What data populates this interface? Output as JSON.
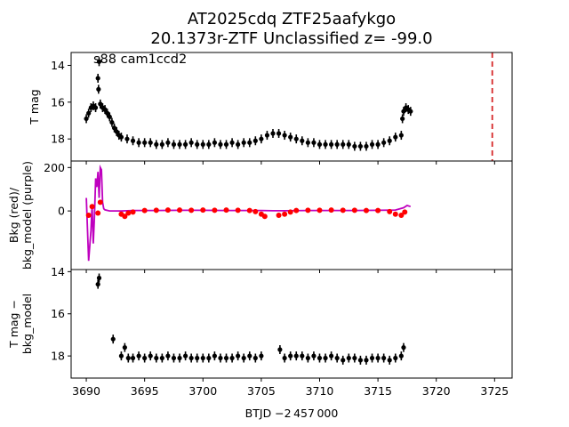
{
  "chart_data": {
    "title_line1": "AT2025cdq  ZTF25aafykgo",
    "title_line2": "20.1373r-ZTF Unclassified z= -99.0",
    "xlabel": "BTJD −2 457 000",
    "x_ticks": [
      3690,
      3695,
      3700,
      3705,
      3710,
      3715,
      3720,
      3725
    ],
    "xlim": [
      3688.7,
      3726.5
    ],
    "panels": [
      {
        "id": "top",
        "type": "scatter",
        "ylabel": "T mag",
        "ylim": [
          19.2,
          13.3
        ],
        "y_ticks": [
          14,
          16,
          18
        ],
        "annotation": "s88 cam1ccd2",
        "vline": {
          "x": 3724.8,
          "color": "#d62728",
          "style": "dashed"
        },
        "series": [
          {
            "color": "#000000",
            "points": [
              [
                3690.0,
                16.9
              ],
              [
                3690.2,
                16.6
              ],
              [
                3690.4,
                16.3
              ],
              [
                3690.6,
                16.2
              ],
              [
                3690.8,
                16.3
              ],
              [
                3691.0,
                14.7
              ],
              [
                3691.05,
                15.3
              ],
              [
                3691.1,
                13.8
              ],
              [
                3691.2,
                16.1
              ],
              [
                3691.4,
                16.3
              ],
              [
                3691.6,
                16.4
              ],
              [
                3691.8,
                16.6
              ],
              [
                3692.0,
                16.8
              ],
              [
                3692.2,
                17.1
              ],
              [
                3692.4,
                17.4
              ],
              [
                3692.6,
                17.6
              ],
              [
                3692.8,
                17.8
              ],
              [
                3693.0,
                17.9
              ],
              [
                3693.5,
                18.0
              ],
              [
                3694.0,
                18.1
              ],
              [
                3694.5,
                18.2
              ],
              [
                3695.0,
                18.2
              ],
              [
                3695.5,
                18.2
              ],
              [
                3696.0,
                18.3
              ],
              [
                3696.5,
                18.3
              ],
              [
                3697.0,
                18.2
              ],
              [
                3697.5,
                18.3
              ],
              [
                3698.0,
                18.3
              ],
              [
                3698.5,
                18.3
              ],
              [
                3699.0,
                18.2
              ],
              [
                3699.5,
                18.3
              ],
              [
                3700.0,
                18.3
              ],
              [
                3700.5,
                18.3
              ],
              [
                3701.0,
                18.2
              ],
              [
                3701.5,
                18.3
              ],
              [
                3702.0,
                18.3
              ],
              [
                3702.5,
                18.2
              ],
              [
                3703.0,
                18.3
              ],
              [
                3703.5,
                18.2
              ],
              [
                3704.0,
                18.2
              ],
              [
                3704.5,
                18.1
              ],
              [
                3705.0,
                18.0
              ],
              [
                3705.5,
                17.8
              ],
              [
                3706.0,
                17.7
              ],
              [
                3706.5,
                17.7
              ],
              [
                3707.0,
                17.8
              ],
              [
                3707.5,
                17.9
              ],
              [
                3708.0,
                18.0
              ],
              [
                3708.5,
                18.1
              ],
              [
                3709.0,
                18.2
              ],
              [
                3709.5,
                18.2
              ],
              [
                3710.0,
                18.3
              ],
              [
                3710.5,
                18.3
              ],
              [
                3711.0,
                18.3
              ],
              [
                3711.5,
                18.3
              ],
              [
                3712.0,
                18.3
              ],
              [
                3712.5,
                18.3
              ],
              [
                3713.0,
                18.4
              ],
              [
                3713.5,
                18.4
              ],
              [
                3714.0,
                18.4
              ],
              [
                3714.5,
                18.3
              ],
              [
                3715.0,
                18.3
              ],
              [
                3715.5,
                18.2
              ],
              [
                3716.0,
                18.1
              ],
              [
                3716.5,
                17.9
              ],
              [
                3717.0,
                17.8
              ],
              [
                3717.1,
                16.9
              ],
              [
                3717.2,
                16.5
              ],
              [
                3717.4,
                16.3
              ],
              [
                3717.6,
                16.4
              ],
              [
                3717.8,
                16.5
              ]
            ]
          }
        ]
      },
      {
        "id": "middle",
        "type": "line",
        "ylabel_line1": "Bkg (red)/",
        "ylabel_line2": "bkg_model (purple)",
        "ylim": [
          -270,
          230
        ],
        "y_ticks": [
          0,
          200
        ],
        "series": [
          {
            "name": "bkg_model",
            "color": "#bf00bf",
            "points": [
              [
                3690.0,
                60
              ],
              [
                3690.2,
                -230
              ],
              [
                3690.4,
                -90
              ],
              [
                3690.5,
                30
              ],
              [
                3690.6,
                -150
              ],
              [
                3690.7,
                -30
              ],
              [
                3690.8,
                150
              ],
              [
                3690.9,
                110
              ],
              [
                3691.0,
                180
              ],
              [
                3691.1,
                60
              ],
              [
                3691.2,
                200
              ],
              [
                3691.3,
                190
              ],
              [
                3691.4,
                40
              ],
              [
                3691.5,
                10
              ],
              [
                3691.6,
                5
              ],
              [
                3692.0,
                0
              ],
              [
                3693.0,
                0
              ],
              [
                3694.0,
                2
              ],
              [
                3696.0,
                2
              ],
              [
                3698.0,
                3
              ],
              [
                3700.0,
                3
              ],
              [
                3702.0,
                2
              ],
              [
                3704.0,
                2
              ],
              [
                3705.0,
                2
              ],
              [
                3706.0,
                1
              ],
              [
                3707.0,
                1
              ],
              [
                3709.0,
                2
              ],
              [
                3711.0,
                2
              ],
              [
                3713.0,
                2
              ],
              [
                3715.0,
                3
              ],
              [
                3716.5,
                4
              ],
              [
                3717.2,
                15
              ],
              [
                3717.5,
                25
              ],
              [
                3717.8,
                20
              ]
            ]
          },
          {
            "name": "bkg",
            "color": "#ff0000",
            "points": [
              [
                3690.2,
                -20
              ],
              [
                3690.5,
                20
              ],
              [
                3691.0,
                -10
              ],
              [
                3691.2,
                40
              ],
              [
                3693.0,
                -15
              ],
              [
                3693.3,
                -25
              ],
              [
                3693.6,
                -10
              ],
              [
                3694.0,
                -5
              ],
              [
                3695.0,
                2
              ],
              [
                3696.0,
                3
              ],
              [
                3697.0,
                4
              ],
              [
                3698.0,
                4
              ],
              [
                3699.0,
                3
              ],
              [
                3700.0,
                4
              ],
              [
                3701.0,
                3
              ],
              [
                3702.0,
                4
              ],
              [
                3703.0,
                3
              ],
              [
                3704.0,
                2
              ],
              [
                3704.5,
                -3
              ],
              [
                3705.0,
                -15
              ],
              [
                3705.3,
                -25
              ],
              [
                3706.5,
                -20
              ],
              [
                3707.0,
                -15
              ],
              [
                3707.5,
                -5
              ],
              [
                3708.0,
                2
              ],
              [
                3709.0,
                3
              ],
              [
                3710.0,
                3
              ],
              [
                3711.0,
                4
              ],
              [
                3712.0,
                3
              ],
              [
                3713.0,
                3
              ],
              [
                3714.0,
                2
              ],
              [
                3715.0,
                2
              ],
              [
                3716.0,
                -3
              ],
              [
                3716.5,
                -15
              ],
              [
                3717.0,
                -20
              ],
              [
                3717.3,
                -5
              ]
            ]
          }
        ]
      },
      {
        "id": "bottom",
        "type": "scatter",
        "ylabel_line1": "T mag −",
        "ylabel_line2": "bkg_model",
        "ylim": [
          19.05,
          13.9
        ],
        "y_ticks": [
          14,
          16,
          18
        ],
        "series": [
          {
            "color": "#000000",
            "points": [
              [
                3691.0,
                14.6
              ],
              [
                3691.1,
                14.3
              ],
              [
                3692.3,
                17.2
              ],
              [
                3693.0,
                18.0
              ],
              [
                3693.3,
                17.6
              ],
              [
                3693.6,
                18.1
              ],
              [
                3694.0,
                18.1
              ],
              [
                3694.5,
                18.0
              ],
              [
                3695.0,
                18.1
              ],
              [
                3695.5,
                18.0
              ],
              [
                3696.0,
                18.1
              ],
              [
                3696.5,
                18.1
              ],
              [
                3697.0,
                18.0
              ],
              [
                3697.5,
                18.1
              ],
              [
                3698.0,
                18.1
              ],
              [
                3698.5,
                18.0
              ],
              [
                3699.0,
                18.1
              ],
              [
                3699.5,
                18.1
              ],
              [
                3700.0,
                18.1
              ],
              [
                3700.5,
                18.1
              ],
              [
                3701.0,
                18.0
              ],
              [
                3701.5,
                18.1
              ],
              [
                3702.0,
                18.1
              ],
              [
                3702.5,
                18.1
              ],
              [
                3703.0,
                18.0
              ],
              [
                3703.5,
                18.1
              ],
              [
                3704.0,
                18.0
              ],
              [
                3704.5,
                18.1
              ],
              [
                3705.0,
                18.0
              ],
              [
                3706.6,
                17.7
              ],
              [
                3707.0,
                18.1
              ],
              [
                3707.5,
                18.0
              ],
              [
                3708.0,
                18.0
              ],
              [
                3708.5,
                18.0
              ],
              [
                3709.0,
                18.1
              ],
              [
                3709.5,
                18.0
              ],
              [
                3710.0,
                18.1
              ],
              [
                3710.5,
                18.1
              ],
              [
                3711.0,
                18.0
              ],
              [
                3711.5,
                18.1
              ],
              [
                3712.0,
                18.2
              ],
              [
                3712.5,
                18.1
              ],
              [
                3713.0,
                18.1
              ],
              [
                3713.5,
                18.2
              ],
              [
                3714.0,
                18.2
              ],
              [
                3714.5,
                18.1
              ],
              [
                3715.0,
                18.1
              ],
              [
                3715.5,
                18.1
              ],
              [
                3716.0,
                18.2
              ],
              [
                3716.5,
                18.1
              ],
              [
                3717.0,
                18.0
              ],
              [
                3717.2,
                17.6
              ]
            ]
          }
        ]
      }
    ]
  }
}
